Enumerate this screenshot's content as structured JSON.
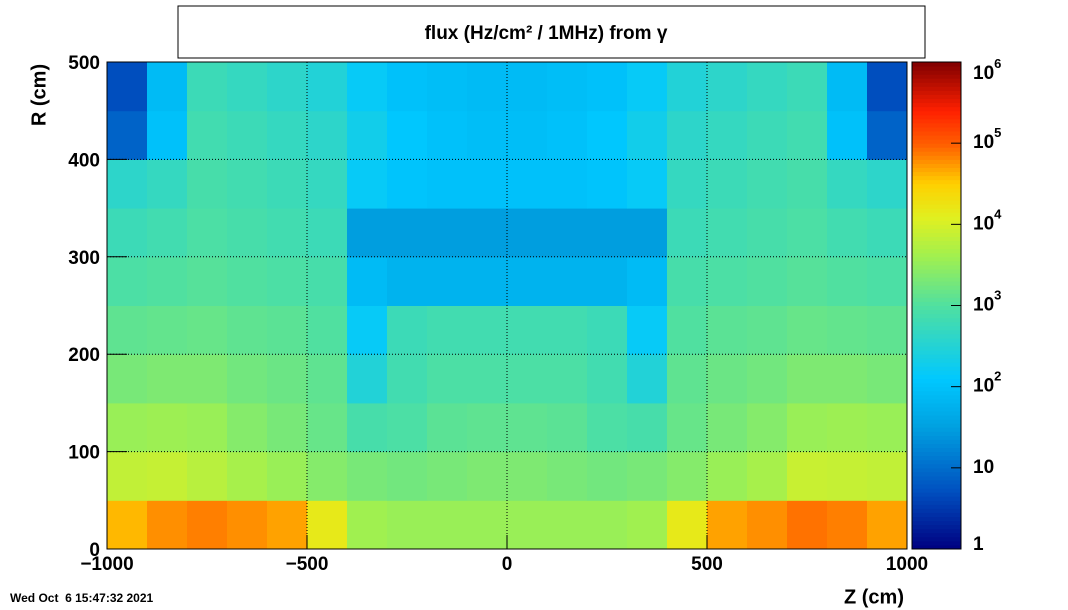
{
  "chart_data": {
    "type": "heatmap",
    "title": "flux (Hz/cm² / 1MHz) from γ",
    "x_label": "Z (cm)",
    "y_label": "R (cm)",
    "timestamp": "Wed Oct  6 15:47:32 2021",
    "xlim": [
      -1000,
      1000
    ],
    "xticks": [
      {
        "value": -1000,
        "label": "−1000"
      },
      {
        "value": -500,
        "label": "−500"
      },
      0,
      500,
      1000
    ],
    "ylim": [
      0,
      500
    ],
    "yticks": [
      0,
      100,
      200,
      300,
      400,
      500
    ],
    "zlim": [
      1,
      1000000
    ],
    "zlog": true,
    "zticks": [
      1,
      10,
      {
        "value": 100,
        "label": "10",
        "exponent": "2"
      },
      {
        "value": 1000,
        "label": "10",
        "exponent": "3"
      },
      {
        "value": 10000,
        "label": "10",
        "exponent": "4"
      },
      {
        "value": 100000,
        "label": "10",
        "exponent": "5"
      },
      {
        "value": 1000000,
        "label": "10",
        "exponent": "6"
      }
    ],
    "grid": true,
    "xbins": [
      -1000,
      -900,
      -800,
      -700,
      -600,
      -500,
      -400,
      -300,
      -200,
      -100,
      0,
      100,
      200,
      300,
      400,
      500,
      600,
      700,
      800,
      900,
      1000
    ],
    "ybins": [
      0,
      50,
      100,
      150,
      200,
      250,
      300,
      350,
      400,
      450,
      500
    ],
    "z": [
      [
        40000,
        60000,
        70000,
        60000,
        50000,
        15000,
        4000,
        3500,
        3500,
        3500,
        3500,
        3500,
        3500,
        4000,
        15000,
        50000,
        60000,
        80000,
        70000,
        50000
      ],
      [
        7000,
        7500,
        6000,
        4500,
        3500,
        2500,
        2000,
        1800,
        2000,
        2200,
        2200,
        2000,
        1800,
        2000,
        2500,
        3500,
        4500,
        8000,
        7500,
        7000
      ],
      [
        3500,
        3800,
        3500,
        2500,
        2000,
        1500,
        800,
        900,
        1200,
        1300,
        1300,
        1200,
        900,
        800,
        1500,
        2000,
        2500,
        3500,
        3800,
        3500
      ],
      [
        2000,
        2200,
        2200,
        1800,
        1600,
        1300,
        300,
        700,
        900,
        900,
        900,
        900,
        700,
        300,
        1300,
        1600,
        1800,
        2200,
        2200,
        2000
      ],
      [
        1300,
        1400,
        1500,
        1300,
        1200,
        1000,
        150,
        600,
        700,
        700,
        700,
        700,
        600,
        150,
        1000,
        1200,
        1300,
        1500,
        1400,
        1300
      ],
      [
        900,
        1000,
        1100,
        1000,
        900,
        800,
        80,
        60,
        60,
        60,
        60,
        60,
        60,
        80,
        800,
        900,
        1000,
        1100,
        1000,
        900
      ],
      [
        600,
        700,
        900,
        800,
        700,
        600,
        30,
        30,
        30,
        30,
        30,
        30,
        30,
        30,
        600,
        700,
        800,
        900,
        700,
        600
      ],
      [
        400,
        500,
        800,
        700,
        600,
        500,
        150,
        110,
        100,
        100,
        100,
        100,
        110,
        150,
        500,
        600,
        700,
        800,
        500,
        400
      ],
      [
        8,
        100,
        700,
        600,
        500,
        400,
        200,
        120,
        100,
        90,
        90,
        100,
        120,
        200,
        400,
        500,
        600,
        700,
        100,
        8
      ],
      [
        5,
        80,
        600,
        500,
        400,
        300,
        150,
        100,
        90,
        80,
        80,
        90,
        100,
        150,
        300,
        400,
        500,
        600,
        80,
        5
      ]
    ]
  }
}
